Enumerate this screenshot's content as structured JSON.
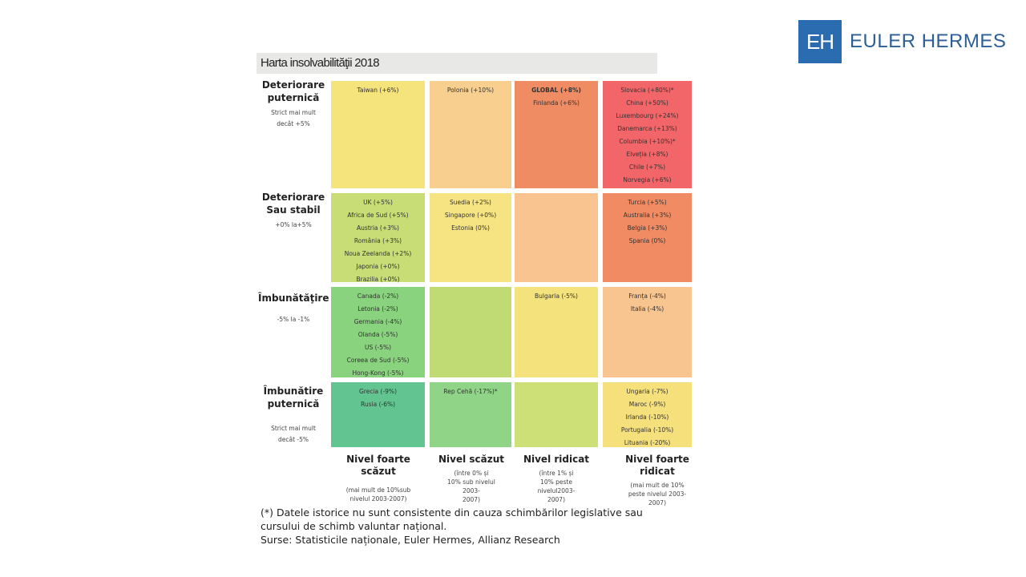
{
  "logo": {
    "mark": "EH",
    "name": "EULER HERMES"
  },
  "title": "Harta insolvabilităţii 2018",
  "rows": [
    {
      "heading": [
        "Deteriorare",
        "puternică"
      ],
      "sub": [
        "Strict mai mult",
        "decât +5%"
      ]
    },
    {
      "heading": [
        "Deteriorare",
        "Sau stabil"
      ],
      "sub": [
        "+0% la+5%"
      ]
    },
    {
      "heading": [
        "Îmbunătăţire"
      ],
      "sub": [
        "-5% la -1%"
      ]
    },
    {
      "heading": [
        "Îmbunătire",
        "puternică"
      ],
      "sub": [
        "Strict mai mult",
        "decât -5%"
      ]
    }
  ],
  "columns": [
    {
      "heading": [
        "Nivel foarte",
        "scăzut"
      ],
      "sub": [
        "(mai mult de 10%sub",
        "nivelul 2003-2007)"
      ]
    },
    {
      "heading": [
        "Nivel scăzut"
      ],
      "sub": [
        "(între 0% și",
        "10% sub nivelul",
        "2003-",
        "2007)"
      ]
    },
    {
      "heading": [
        "Nivel ridicat"
      ],
      "sub": [
        "(între 1% și",
        "10% peste",
        "nivelul2003-",
        "2007)"
      ]
    },
    {
      "heading": [
        "Nivel foarte ridicat"
      ],
      "sub": [
        "(mai mult de 10%",
        "peste nivelul 2003-",
        "2007)"
      ]
    }
  ],
  "cells": [
    [
      {
        "color": "#f5e37c",
        "items": [
          "Taiwan (+6%)"
        ]
      },
      {
        "color": "#f8cf8e",
        "items": [
          "Polonia (+10%)"
        ]
      },
      {
        "color": "#f08c64",
        "items": [
          "GLOBAL (+8%)",
          "Finlanda (+6%)"
        ]
      },
      {
        "color": "#f2666a",
        "items": [
          "Slovacia (+80%)*",
          "China (+50%)",
          "Luxembourg (+24%)",
          "Danemarca (+13%)",
          "Columbia (+10%)*",
          "Elveția (+8%)",
          "Chile (+7%)",
          "Norvegia (+6%)"
        ]
      }
    ],
    [
      {
        "color": "#c8dd76",
        "items": [
          "UK (+5%)",
          "Africa de Sud (+5%)",
          "Austria (+3%)",
          "România (+3%)",
          "Noua Zeelanda (+2%)",
          "Japonia (+0%)",
          "Brazilia (+0%)"
        ]
      },
      {
        "color": "#f6e483",
        "items": [
          "Suedia (+2%)",
          "Singapore (+0%)",
          "Estonia (0%)"
        ]
      },
      {
        "color": "#f9c48f",
        "items": []
      },
      {
        "color": "#f08b64",
        "items": [
          "Turcia (+5%)",
          "Australia (+3%)",
          "Belgia (+3%)",
          "Spania (0%)"
        ]
      }
    ],
    [
      {
        "color": "#89d27e",
        "items": [
          "Canada (-2%)",
          "Letonia (-2%)",
          "Germania (-4%)",
          "Olanda (-5%)",
          "US (-5%)",
          "Coreea de Sud (-5%)",
          "Hong-Kong (-5%)"
        ]
      },
      {
        "color": "#c1db74",
        "items": []
      },
      {
        "color": "#f4e27c",
        "items": [
          "Bulgaria (-5%)"
        ]
      },
      {
        "color": "#f8c48f",
        "items": [
          "Franța (-4%)",
          "Italia (-4%)"
        ]
      }
    ],
    [
      {
        "color": "#62c491",
        "items": [
          "Grecia (-9%)",
          "Rusia (-6%)"
        ]
      },
      {
        "color": "#90d587",
        "items": [
          "Rep Cehă (-17%)*"
        ]
      },
      {
        "color": "#cde078",
        "items": []
      },
      {
        "color": "#f5e07c",
        "items": [
          "Ungaria (-7%)",
          "Maroc (-9%)",
          "Irlanda (-10%)",
          "Portugalia (-10%)",
          "Lituania (-20%)"
        ]
      }
    ]
  ],
  "footnote": [
    "(*) Datele istorice nu sunt consistente din cauza schimbărilor legislative sau",
    "cursului de schimb valuntar național.",
    "Surse: Statisticile naționale, Euler Hermes, Allianz Research"
  ]
}
